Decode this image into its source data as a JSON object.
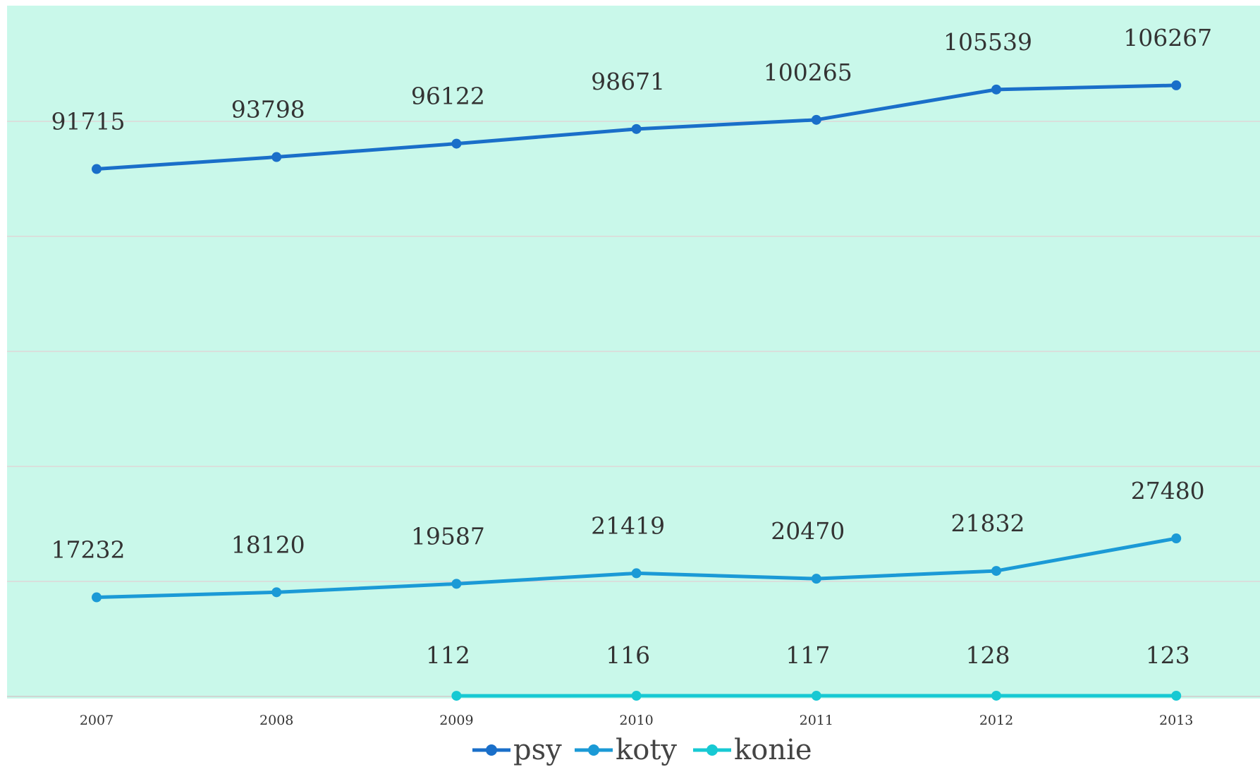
{
  "chart_data": {
    "type": "line",
    "title": "",
    "xlabel": "",
    "ylabel": "",
    "x": [
      "2007",
      "2008",
      "2009",
      "2010",
      "2011",
      "2012",
      "2013"
    ],
    "ylim": [
      0,
      120000
    ],
    "grid": true,
    "legend_position": "bottom",
    "plot_background": "#c9f8ea",
    "series": [
      {
        "name": "psy",
        "color": "#1a6fc9",
        "values": [
          91715,
          93798,
          96122,
          98671,
          100265,
          105539,
          106267
        ]
      },
      {
        "name": "koty",
        "color": "#1b9ad6",
        "values": [
          17232,
          18120,
          19587,
          21419,
          20470,
          21832,
          27480
        ]
      },
      {
        "name": "konie",
        "color": "#17c9d3",
        "values": [
          null,
          null,
          112,
          116,
          117,
          128,
          123
        ]
      }
    ]
  }
}
